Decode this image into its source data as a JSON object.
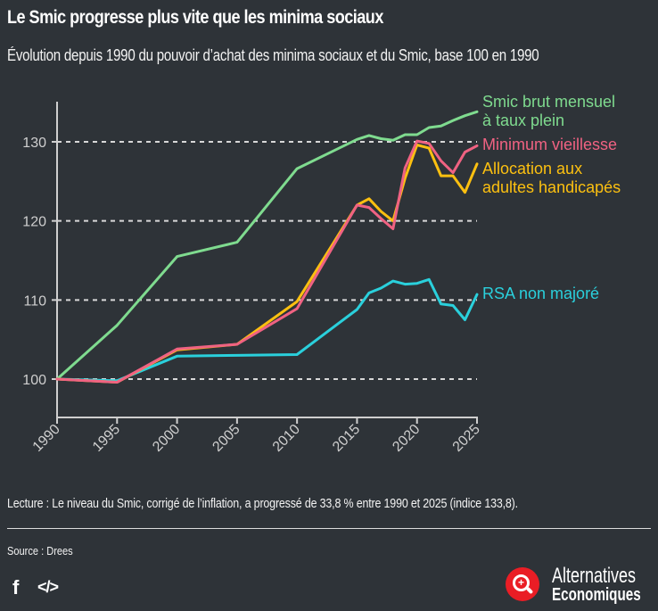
{
  "header": {
    "title": "Le Smic progresse plus vite que les minima sociaux",
    "subtitle": "Évolution depuis 1990 du pouvoir d’achat des minima sociaux et du Smic, base 100 en 1990"
  },
  "chart_data": {
    "type": "line",
    "title": "Le Smic progresse plus vite que les minima sociaux",
    "subtitle": "Évolution depuis 1990 du pouvoir d’achat des minima sociaux et du Smic, base 100 en 1990",
    "xlabel": "",
    "ylabel": "",
    "xlim": [
      1990,
      2025
    ],
    "ylim": [
      96,
      135
    ],
    "x_ticks": [
      "1990",
      "1995",
      "2000",
      "2005",
      "2010",
      "2015",
      "2020",
      "2025"
    ],
    "y_ticks": [
      "100",
      "110",
      "120",
      "130"
    ],
    "grid": "horizontal dashed",
    "legend_placement": "right (inline labels at line ends)",
    "x": [
      1990,
      1995,
      2000,
      2005,
      2010,
      2015,
      2016,
      2017,
      2018,
      2019,
      2020,
      2021,
      2022,
      2023,
      2024,
      2025
    ],
    "series": [
      {
        "name": "Smic brut mensuel à taux plein",
        "label_lines": [
          "Smic brut mensuel",
          "à taux plein"
        ],
        "color": "#7fdb8f",
        "values": [
          100,
          106.8,
          115.5,
          117.3,
          126.6,
          130.3,
          130.8,
          130.4,
          130.2,
          130.9,
          130.9,
          131.8,
          132.0,
          132.7,
          133.3,
          133.8
        ]
      },
      {
        "name": "Minimum vieillesse",
        "label_lines": [
          "Minimum vieillesse"
        ],
        "color": "#f06282",
        "values": [
          100,
          99.6,
          103.8,
          104.4,
          108.9,
          122.0,
          121.7,
          120.3,
          119.0,
          126.7,
          130.1,
          129.8,
          127.6,
          126.1,
          128.7,
          129.5
        ]
      },
      {
        "name": "Allocation aux adultes handicapés",
        "label_lines": [
          "Allocation aux",
          "adultes handicapés"
        ],
        "color": "#fcc010",
        "values": [
          100,
          99.6,
          103.7,
          104.4,
          109.8,
          122.0,
          122.8,
          121.2,
          120.0,
          125.4,
          129.6,
          129.2,
          125.7,
          125.7,
          123.6,
          127.2
        ]
      },
      {
        "name": "RSA non majoré",
        "label_lines": [
          "RSA non majoré"
        ],
        "color": "#2ad0dc",
        "values": [
          100,
          99.8,
          102.9,
          103.0,
          103.1,
          108.8,
          110.9,
          111.5,
          112.4,
          112.0,
          112.1,
          112.6,
          109.5,
          109.3,
          107.5,
          110.7
        ]
      }
    ],
    "annotations": []
  },
  "footer": {
    "lecture": "Lecture : Le niveau du Smic, corrigé de l’inflation, a progressé de 33,8 % entre 1990 et 2025 (indice 133,8).",
    "source": "Source : Drees",
    "share_icons": [
      "facebook-icon",
      "embed-code-icon"
    ],
    "facebook_glyph": "f",
    "embed_glyph": "</>",
    "logo_line1": "Alternatives",
    "logo_line2": "Economiques",
    "logo_color": "#ea1d25"
  }
}
